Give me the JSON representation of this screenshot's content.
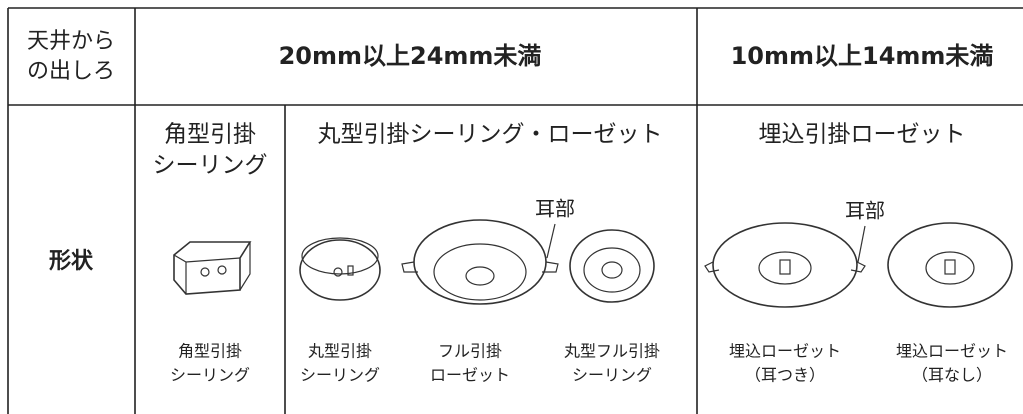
{
  "header": {
    "label_lines": [
      "天井から",
      "の出しろ"
    ],
    "columns": [
      "20mm以上24mm未満",
      "10mm以上14mm未満"
    ]
  },
  "row": {
    "label": "形状",
    "groups": [
      {
        "title_lines": [
          "角型引掛",
          "シーリング"
        ],
        "items": [
          {
            "caption_lines": [
              "角型引掛",
              "シーリング"
            ]
          }
        ]
      },
      {
        "title": "丸型引掛シーリング・ローゼット",
        "ear_label": "耳部",
        "items": [
          {
            "caption_lines": [
              "丸型引掛",
              "シーリング"
            ]
          },
          {
            "caption_lines": [
              "フル引掛",
              "ローゼット"
            ]
          },
          {
            "caption_lines": [
              "丸型フル引掛",
              "シーリング"
            ]
          }
        ]
      },
      {
        "title": "埋込引掛ローゼット",
        "ear_label": "耳部",
        "items": [
          {
            "caption_lines": [
              "埋込ローゼット",
              "（耳つき）"
            ]
          },
          {
            "caption_lines": [
              "埋込ローゼット",
              "（耳なし）"
            ]
          }
        ]
      }
    ]
  }
}
